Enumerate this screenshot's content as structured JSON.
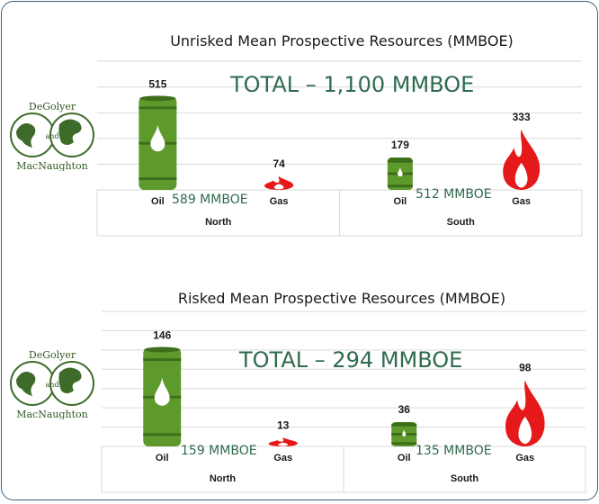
{
  "chart_data": [
    {
      "type": "bar",
      "title": "Unrisked Mean Prospective Resources (MMBOE)",
      "total_label": "TOTAL – 1,100 MMBOE",
      "groups": [
        "North",
        "South"
      ],
      "categories": [
        "Oil",
        "Gas"
      ],
      "series": [
        {
          "name": "Oil",
          "values": [
            515,
            179
          ]
        },
        {
          "name": "Gas",
          "values": [
            74,
            333
          ]
        }
      ],
      "group_totals": [
        "589 MMBOE",
        "512 MMBOE"
      ],
      "ylim": [
        0,
        600
      ],
      "grid": true
    },
    {
      "type": "bar",
      "title": "Risked Mean Prospective Resources (MMBOE)",
      "total_label": "TOTAL – 294 MMBOE",
      "groups": [
        "North",
        "South"
      ],
      "categories": [
        "Oil",
        "Gas"
      ],
      "series": [
        {
          "name": "Oil",
          "values": [
            146,
            36
          ]
        },
        {
          "name": "Gas",
          "values": [
            13,
            98
          ]
        }
      ],
      "group_totals": [
        "159 MMBOE",
        "135 MMBOE"
      ],
      "ylim": [
        0,
        160
      ],
      "grid": true
    }
  ],
  "logo": {
    "line1": "DeGolyer",
    "line2": "and",
    "line3": "MacNaughton"
  },
  "colors": {
    "oil": "#5e9a2b",
    "oil_dark": "#3e6e1a",
    "gas": "#e51919",
    "total_text": "#2f6b4f",
    "frame": "#3a6280"
  }
}
